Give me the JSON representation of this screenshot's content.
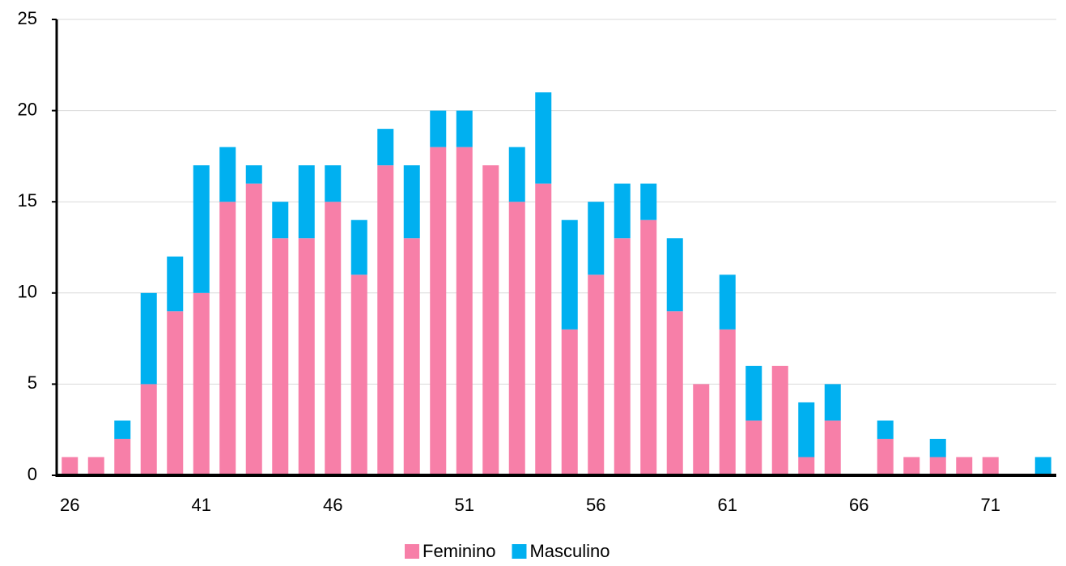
{
  "chart_data": {
    "type": "stacked_bar",
    "categories": [
      "26",
      null,
      null,
      null,
      null,
      "41",
      null,
      null,
      null,
      null,
      "46",
      null,
      null,
      null,
      null,
      "51",
      null,
      null,
      null,
      null,
      "56",
      null,
      null,
      null,
      null,
      "61",
      null,
      null,
      null,
      null,
      "66",
      null,
      null,
      null,
      null,
      "71",
      null,
      null
    ],
    "series": [
      {
        "name": "Feminino",
        "color": "#f77fa8",
        "values": [
          1,
          1,
          2,
          5,
          9,
          10,
          15,
          16,
          13,
          13,
          15,
          11,
          17,
          13,
          18,
          18,
          17,
          15,
          16,
          8,
          11,
          13,
          14,
          9,
          5,
          8,
          3,
          6,
          1,
          3,
          0,
          2,
          1,
          1,
          1,
          1,
          0,
          0
        ]
      },
      {
        "name": "Masculino",
        "color": "#00b0f0",
        "values": [
          0,
          0,
          1,
          5,
          3,
          7,
          3,
          1,
          2,
          4,
          2,
          3,
          2,
          4,
          2,
          2,
          0,
          3,
          5,
          6,
          4,
          3,
          2,
          4,
          0,
          3,
          3,
          0,
          3,
          2,
          0,
          1,
          0,
          1,
          0,
          0,
          0,
          1
        ]
      }
    ],
    "ylim": [
      0,
      25
    ],
    "yticks": [
      0,
      5,
      10,
      15,
      20,
      25
    ],
    "grid": true,
    "legend": "bottom"
  }
}
